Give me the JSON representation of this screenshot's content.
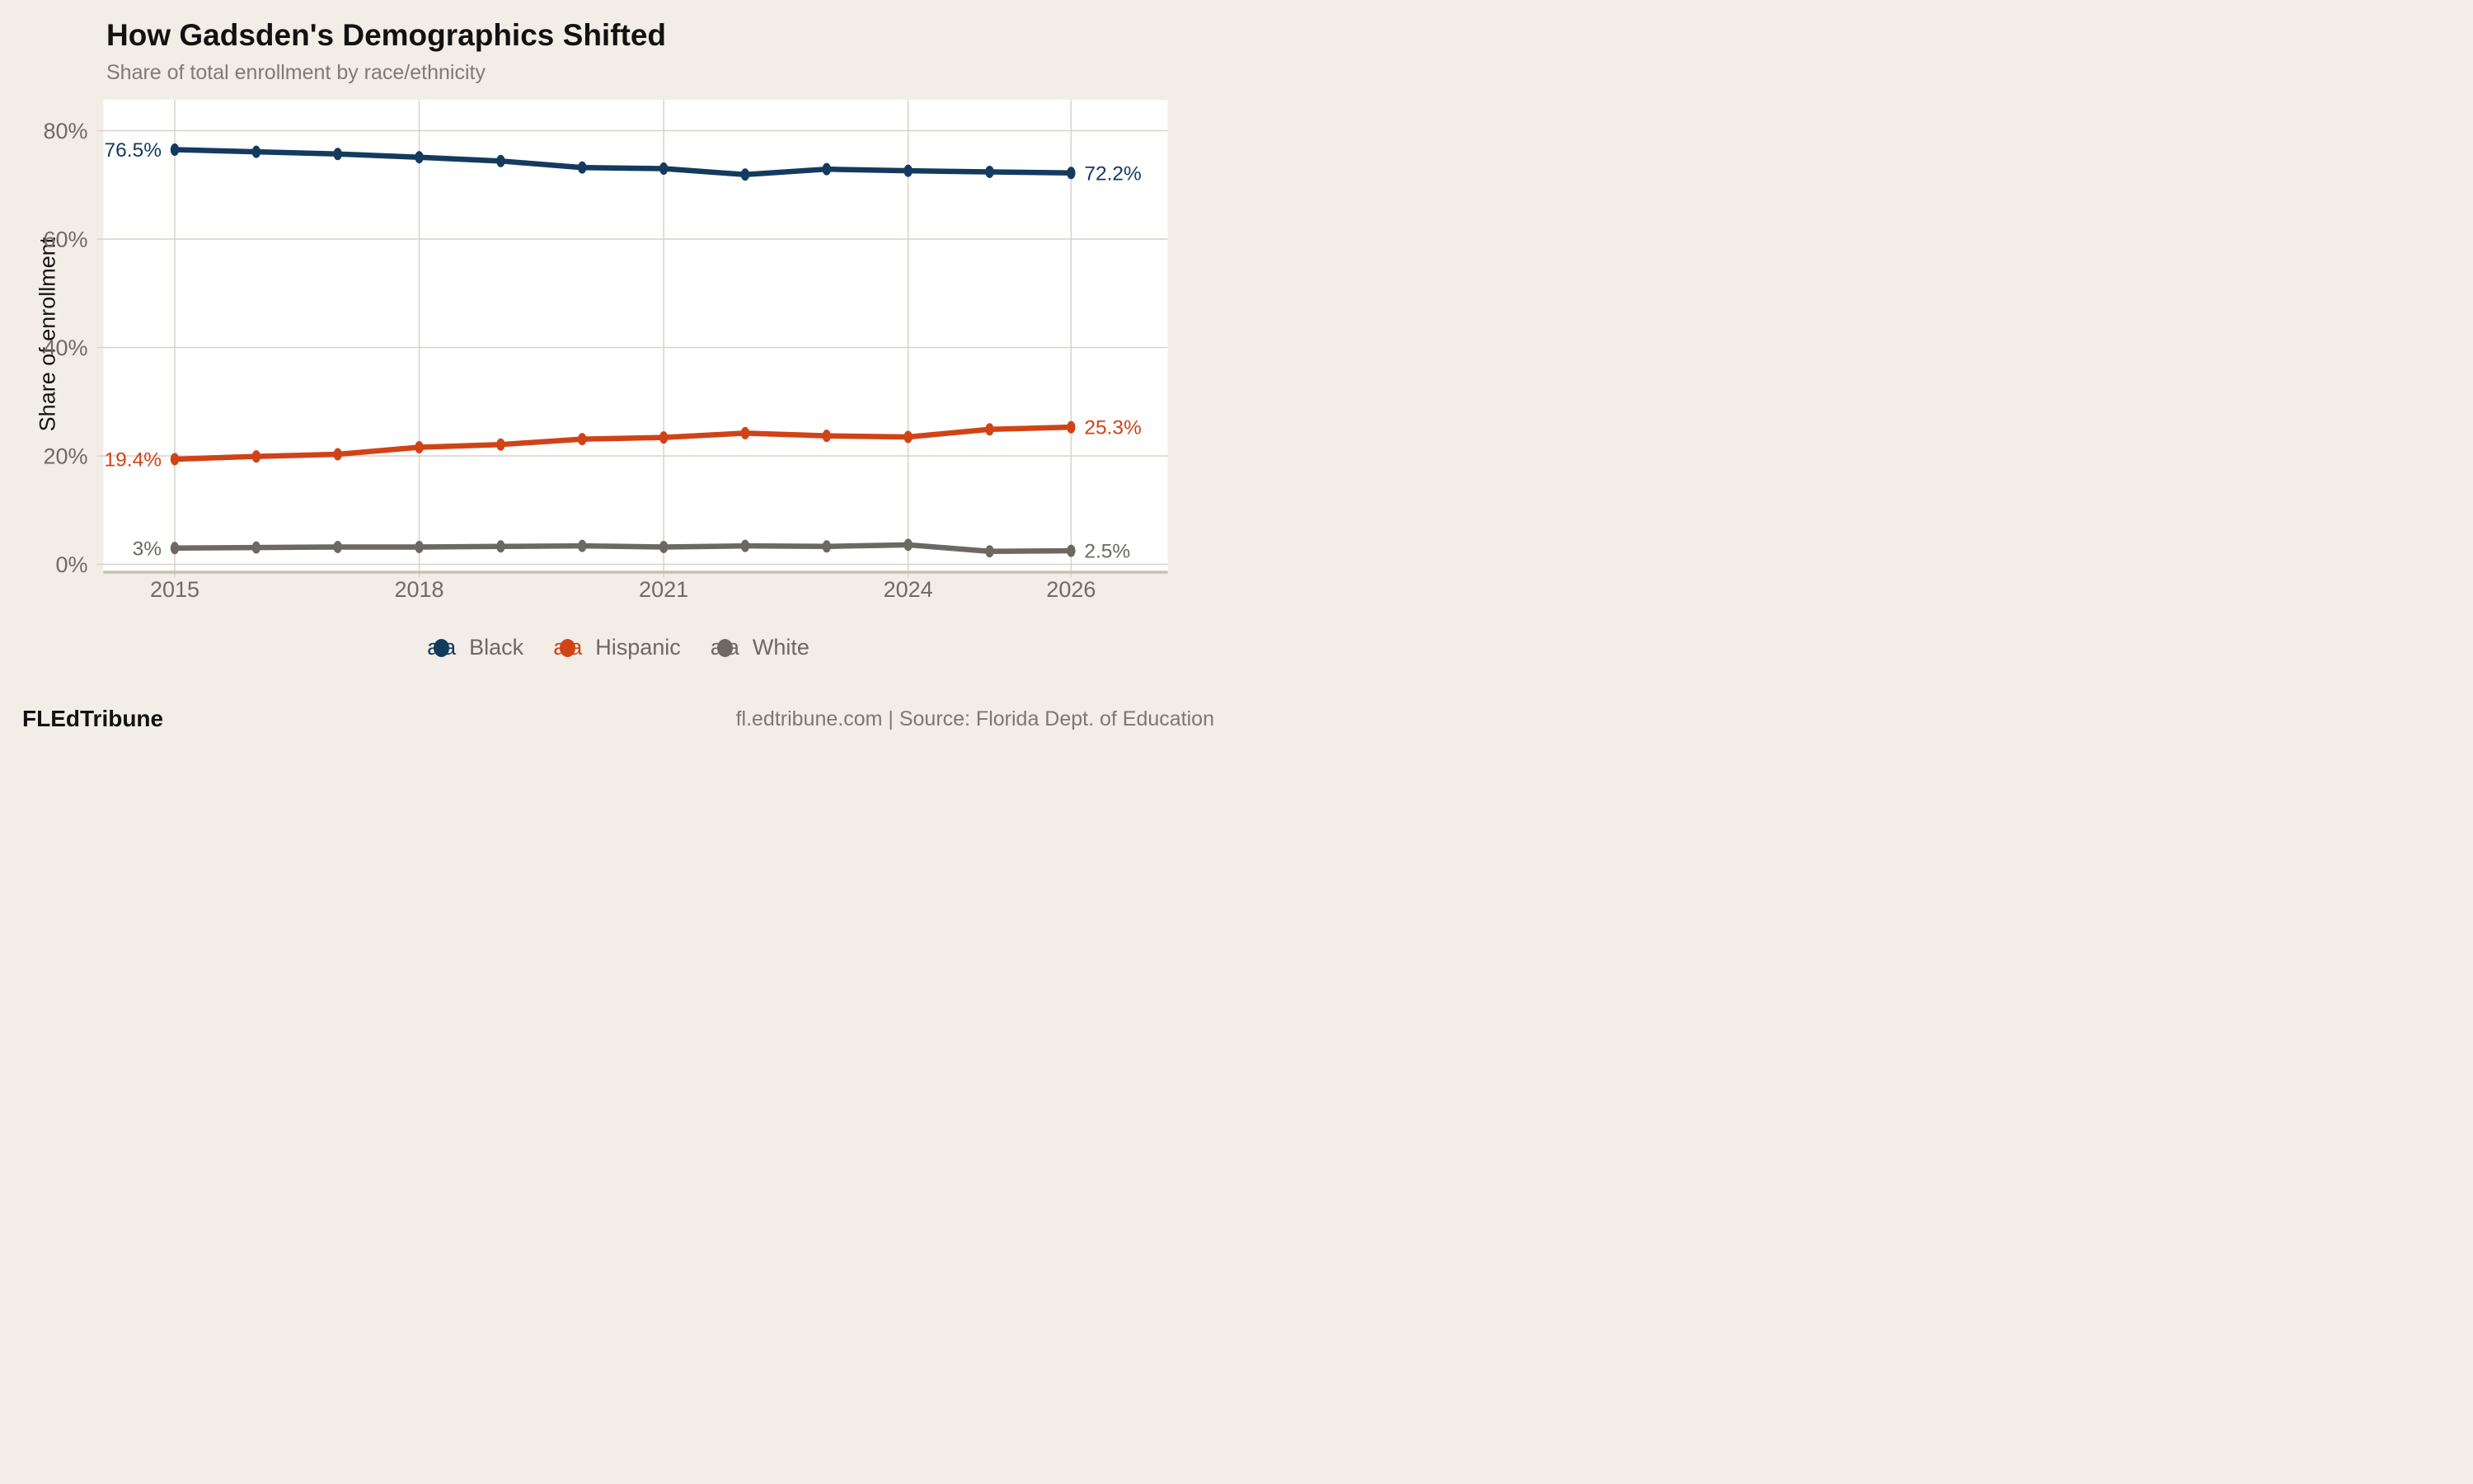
{
  "title": "How Gadsden's Demographics Shifted",
  "subtitle": "Share of total enrollment by race/ethnicity",
  "y_axis_title": "Share of enrollment",
  "footer": {
    "brand": "FLEdTribune",
    "source": "fl.edtribune.com | Source: Florida Dept. of Education"
  },
  "colors": {
    "background": "#f2eee7",
    "panel": "#ffffff",
    "gridline": "#d8d2c9",
    "axis_line": "#c7c0b4",
    "tick_text": "#6f6b64",
    "black_series": "#143a5e",
    "hispanic_series": "#d04317",
    "white_series": "#6d6862"
  },
  "chart_data": {
    "type": "line",
    "title": "How Gadsden's Demographics Shifted",
    "subtitle": "Share of total enrollment by race/ethnicity",
    "xlabel": "",
    "ylabel": "Share of enrollment",
    "x": [
      2015,
      2016,
      2017,
      2018,
      2019,
      2020,
      2021,
      2022,
      2023,
      2024,
      2025,
      2026
    ],
    "xticks": [
      2015,
      2018,
      2021,
      2024,
      2026
    ],
    "yticks": [
      0,
      20,
      40,
      60,
      80
    ],
    "ytick_suffix": "%",
    "ylim": [
      0,
      85.7
    ],
    "grid": true,
    "legend_position": "bottom",
    "series": [
      {
        "name": "Black",
        "color": "#143a5e",
        "values": [
          76.5,
          76.1,
          75.7,
          75.1,
          74.4,
          73.2,
          73.0,
          71.9,
          72.9,
          72.6,
          72.4,
          72.2
        ],
        "first_label": "76.5%",
        "last_label": "72.2%"
      },
      {
        "name": "Hispanic",
        "color": "#d04317",
        "values": [
          19.4,
          19.9,
          20.3,
          21.6,
          22.1,
          23.1,
          23.4,
          24.2,
          23.7,
          23.5,
          24.9,
          25.3
        ],
        "first_label": "19.4%",
        "last_label": "25.3%"
      },
      {
        "name": "White",
        "color": "#6d6862",
        "values": [
          3.0,
          3.1,
          3.2,
          3.2,
          3.3,
          3.4,
          3.2,
          3.4,
          3.3,
          3.6,
          2.4,
          2.5
        ],
        "first_label": "3%",
        "last_label": "2.5%"
      }
    ]
  }
}
